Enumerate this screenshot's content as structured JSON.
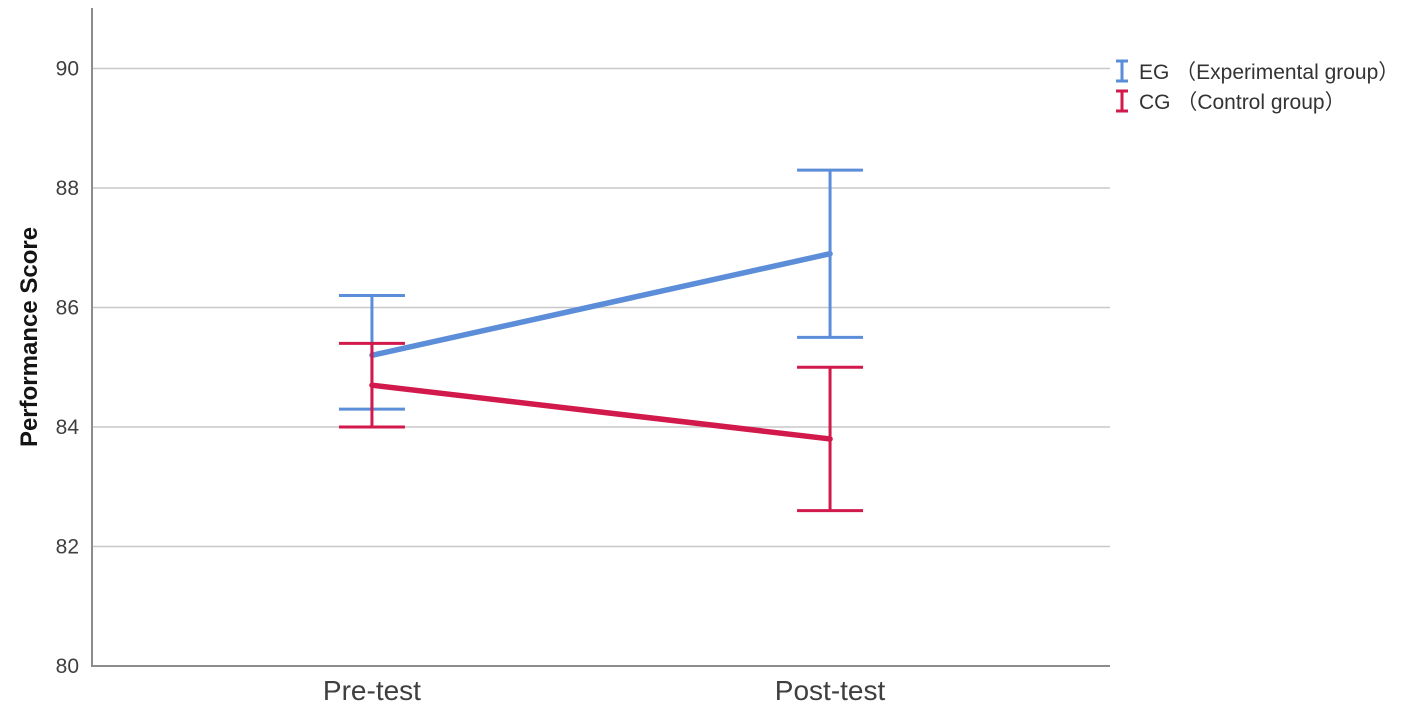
{
  "chart_data": {
    "type": "line",
    "title": "",
    "ylabel": "Performance Score",
    "xlabel": "",
    "categories": [
      "Pre-test",
      "Post-test"
    ],
    "series": [
      {
        "name": "EG （Experimental group）",
        "color": "#5B8DD9",
        "values": [
          85.2,
          86.9
        ],
        "ci_low": [
          84.3,
          85.5
        ],
        "ci_high": [
          86.2,
          88.3
        ]
      },
      {
        "name": "CG （Control group）",
        "color": "#D2194B",
        "values": [
          84.7,
          83.8
        ],
        "ci_low": [
          84.0,
          82.6
        ],
        "ci_high": [
          85.4,
          85.0
        ]
      }
    ],
    "ylim": [
      80,
      90
    ],
    "yticks": [
      80,
      82,
      84,
      86,
      88,
      90
    ],
    "grid": true,
    "error_bars": true,
    "legend_position": "top-right",
    "axis_colors": {
      "grid": "#C8C8C8",
      "axis": "#8C8C8C",
      "tick_text": "#3F3F3F"
    }
  }
}
